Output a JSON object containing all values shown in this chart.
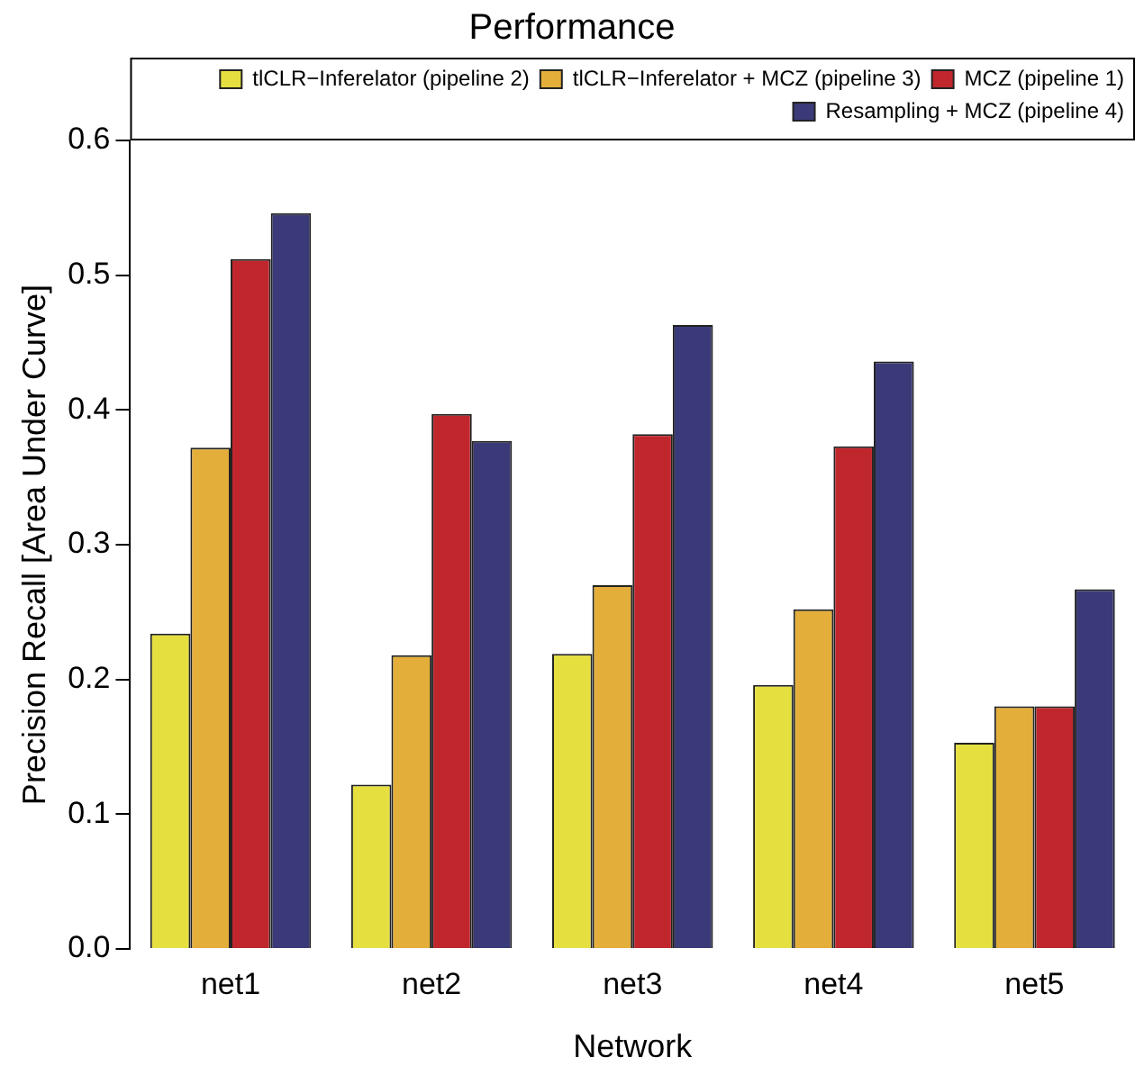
{
  "chart_data": {
    "type": "bar",
    "title": "Performance",
    "xlabel": "Network",
    "ylabel": "Precision Recall [Area Under Curve]",
    "categories": [
      "net1",
      "net2",
      "net3",
      "net4",
      "net5"
    ],
    "series": [
      {
        "name": "tlCLR−Inferelator (pipeline 2)",
        "color": "#e5e040",
        "values": [
          0.234,
          0.122,
          0.219,
          0.196,
          0.153
        ]
      },
      {
        "name": "tlCLR−Inferelator + MCZ (pipeline 3)",
        "color": "#e3ae3a",
        "values": [
          0.372,
          0.218,
          0.27,
          0.252,
          0.18
        ]
      },
      {
        "name": "MCZ (pipeline 1)",
        "color": "#c0272d",
        "values": [
          0.512,
          0.397,
          0.382,
          0.373,
          0.18
        ]
      },
      {
        "name": "Resampling + MCZ (pipeline 4)",
        "color": "#3b3a78",
        "values": [
          0.546,
          0.377,
          0.463,
          0.436,
          0.267
        ]
      }
    ],
    "ylim": [
      0,
      0.6
    ],
    "yticks": [
      {
        "value": 0,
        "label": "0.0"
      },
      0.1,
      0.2,
      0.3,
      0.4,
      0.5,
      0.6
    ],
    "grid": false,
    "legend": "top right"
  }
}
